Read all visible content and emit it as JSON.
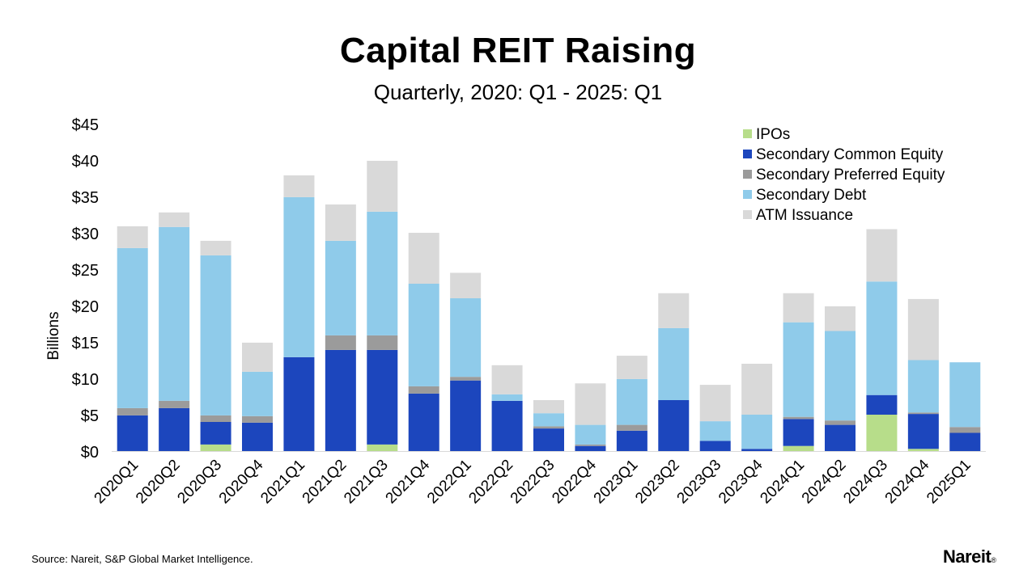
{
  "title": "Capital REIT Raising",
  "subtitle": "Quarterly, 2020: Q1 - 2025: Q1",
  "source": "Source: Nareit, S&P Global Market Intelligence.",
  "brand": "Nareit",
  "brand_mark": "®",
  "chart_data": {
    "type": "bar",
    "stacked": true,
    "title": "Capital REIT Raising",
    "subtitle": "Quarterly, 2020: Q1 - 2025: Q1",
    "xlabel": "",
    "ylabel": "Billions",
    "ylim": [
      0,
      45
    ],
    "yticks": [
      0,
      5,
      10,
      15,
      20,
      25,
      30,
      35,
      40,
      45
    ],
    "ytick_labels": [
      "$0",
      "$5",
      "$10",
      "$15",
      "$20",
      "$25",
      "$30",
      "$35",
      "$40",
      "$45"
    ],
    "legend_position": "top-right",
    "grid": false,
    "categories": [
      "2020Q1",
      "2020Q2",
      "2020Q3",
      "2020Q4",
      "2021Q1",
      "2021Q2",
      "2021Q3",
      "2021Q4",
      "2022Q1",
      "2022Q2",
      "2022Q3",
      "2022Q4",
      "2023Q1",
      "2023Q2",
      "2023Q3",
      "2023Q4",
      "2024Q1",
      "2024Q2",
      "2024Q3",
      "2024Q4",
      "2025Q1"
    ],
    "series": [
      {
        "name": "IPOs",
        "color": "#b7dd8a",
        "values": [
          0,
          0,
          0.9,
          0,
          0,
          0,
          0.9,
          0,
          0,
          0,
          0,
          0,
          0,
          0,
          0,
          0,
          0.7,
          0,
          5.0,
          0.3,
          0
        ]
      },
      {
        "name": "Secondary Common Equity",
        "color": "#1c46bd",
        "values": [
          4.9,
          5.9,
          3.1,
          3.9,
          12.9,
          13.9,
          13.0,
          7.9,
          9.7,
          6.9,
          3.1,
          0.7,
          2.8,
          7.0,
          1.4,
          0.3,
          3.7,
          3.6,
          2.7,
          4.8,
          2.5
        ]
      },
      {
        "name": "Secondary Preferred Equity",
        "color": "#9b9b9b",
        "values": [
          1.0,
          1.0,
          0.9,
          0.9,
          0,
          2.0,
          2.0,
          1.0,
          0.5,
          0,
          0.3,
          0.2,
          0.8,
          0,
          0,
          0,
          0.3,
          0.6,
          0,
          0.2,
          0.8
        ]
      },
      {
        "name": "Secondary Debt",
        "color": "#8fcbea",
        "values": [
          22.0,
          23.9,
          22.0,
          6.1,
          22.0,
          13.0,
          17.0,
          14.1,
          10.8,
          0.9,
          1.8,
          2.7,
          6.3,
          9.9,
          2.7,
          4.7,
          13.0,
          12.3,
          15.6,
          7.2,
          8.9
        ]
      },
      {
        "name": "ATM Issuance",
        "color": "#d9d9d9",
        "values": [
          3.0,
          2.0,
          2.0,
          4.0,
          3.0,
          5.0,
          7.0,
          7.0,
          3.5,
          4.0,
          1.8,
          5.7,
          3.2,
          4.8,
          5.0,
          7.0,
          4.0,
          3.4,
          7.2,
          8.4,
          0
        ]
      }
    ]
  }
}
